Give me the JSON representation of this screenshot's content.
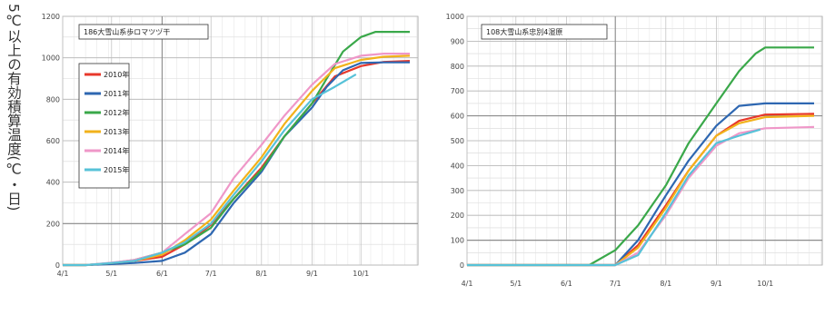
{
  "y_axis_title": "5℃以上の有効積算温度(℃・日)",
  "chart_data": [
    {
      "type": "line",
      "title": "186大雪山系歩ロマツヅ干",
      "xlabel": "",
      "ylabel": "",
      "ylim": [
        0,
        1200
      ],
      "y_ticks": [
        0,
        200,
        400,
        600,
        800,
        1000,
        1200
      ],
      "x_ticks": [
        "4/1",
        "5/1",
        "6/1",
        "7/1",
        "8/1",
        "9/1",
        "10/1"
      ],
      "legend": "top-left",
      "series": [
        {
          "name": "2010年",
          "color": "#e8382b",
          "points": [
            [
              "4/1",
              0
            ],
            [
              "4/15",
              0
            ],
            [
              "5/1",
              8
            ],
            [
              "5/15",
              20
            ],
            [
              "6/1",
              40
            ],
            [
              "6/15",
              100
            ],
            [
              "7/1",
              195
            ],
            [
              "7/15",
              320
            ],
            [
              "8/1",
              470
            ],
            [
              "8/15",
              620
            ],
            [
              "9/1",
              780
            ],
            [
              "9/15",
              910
            ],
            [
              "10/1",
              960
            ],
            [
              "10/15",
              980
            ],
            [
              "10/31",
              985
            ]
          ]
        },
        {
          "name": "2011年",
          "color": "#2e67b1",
          "points": [
            [
              "4/1",
              0
            ],
            [
              "4/15",
              0
            ],
            [
              "5/1",
              5
            ],
            [
              "5/15",
              10
            ],
            [
              "6/1",
              20
            ],
            [
              "6/15",
              60
            ],
            [
              "7/1",
              150
            ],
            [
              "7/15",
              300
            ],
            [
              "8/1",
              450
            ],
            [
              "8/15",
              620
            ],
            [
              "9/1",
              760
            ],
            [
              "9/10",
              860
            ],
            [
              "9/20",
              940
            ],
            [
              "10/1",
              975
            ],
            [
              "10/15",
              978
            ],
            [
              "10/31",
              978
            ]
          ]
        },
        {
          "name": "2012年",
          "color": "#3aa84a",
          "points": [
            [
              "4/1",
              0
            ],
            [
              "4/15",
              0
            ],
            [
              "5/1",
              10
            ],
            [
              "5/15",
              25
            ],
            [
              "6/1",
              60
            ],
            [
              "6/15",
              100
            ],
            [
              "7/1",
              180
            ],
            [
              "7/15",
              320
            ],
            [
              "8/1",
              460
            ],
            [
              "8/15",
              620
            ],
            [
              "9/1",
              780
            ],
            [
              "9/10",
              900
            ],
            [
              "9/20",
              1030
            ],
            [
              "10/1",
              1100
            ],
            [
              "10/10",
              1125
            ],
            [
              "10/31",
              1125
            ]
          ]
        },
        {
          "name": "2013年",
          "color": "#f2b21b",
          "points": [
            [
              "4/1",
              0
            ],
            [
              "4/15",
              0
            ],
            [
              "5/1",
              10
            ],
            [
              "5/15",
              20
            ],
            [
              "6/1",
              50
            ],
            [
              "6/15",
              120
            ],
            [
              "7/1",
              220
            ],
            [
              "7/15",
              360
            ],
            [
              "8/1",
              520
            ],
            [
              "8/15",
              680
            ],
            [
              "9/1",
              840
            ],
            [
              "9/15",
              950
            ],
            [
              "10/1",
              990
            ],
            [
              "10/15",
              1005
            ],
            [
              "10/31",
              1010
            ]
          ]
        },
        {
          "name": "2014年",
          "color": "#ef97c8",
          "points": [
            [
              "4/1",
              0
            ],
            [
              "4/15",
              0
            ],
            [
              "5/1",
              12
            ],
            [
              "5/15",
              25
            ],
            [
              "6/1",
              60
            ],
            [
              "6/15",
              150
            ],
            [
              "7/1",
              250
            ],
            [
              "7/15",
              420
            ],
            [
              "8/1",
              580
            ],
            [
              "8/15",
              720
            ],
            [
              "9/1",
              870
            ],
            [
              "9/15",
              970
            ],
            [
              "10/1",
              1010
            ],
            [
              "10/15",
              1020
            ],
            [
              "10/31",
              1020
            ]
          ]
        },
        {
          "name": "2015年",
          "color": "#57c2d8",
          "points": [
            [
              "4/1",
              0
            ],
            [
              "4/15",
              0
            ],
            [
              "5/1",
              10
            ],
            [
              "5/15",
              20
            ],
            [
              "6/1",
              60
            ],
            [
              "6/15",
              110
            ],
            [
              "7/1",
              200
            ],
            [
              "7/15",
              340
            ],
            [
              "8/1",
              500
            ],
            [
              "8/15",
              650
            ],
            [
              "9/1",
              800
            ],
            [
              "9/15",
              860
            ],
            [
              "9/28",
              920
            ]
          ]
        }
      ]
    },
    {
      "type": "line",
      "title": "108大雪山系忠別4湿原",
      "xlabel": "",
      "ylabel": "",
      "ylim": [
        0,
        1000
      ],
      "y_ticks": [
        0,
        100,
        200,
        300,
        400,
        500,
        600,
        700,
        800,
        900,
        1000
      ],
      "x_ticks": [
        "4/1",
        "5/1",
        "6/1",
        "7/1",
        "8/1",
        "9/1",
        "10/1"
      ],
      "series": [
        {
          "name": "2010年",
          "color": "#e8382b",
          "points": [
            [
              "4/1",
              0
            ],
            [
              "7/1",
              0
            ],
            [
              "7/15",
              80
            ],
            [
              "8/1",
              240
            ],
            [
              "8/15",
              380
            ],
            [
              "9/1",
              520
            ],
            [
              "9/15",
              580
            ],
            [
              "10/1",
              605
            ],
            [
              "10/31",
              608
            ]
          ]
        },
        {
          "name": "2011年",
          "color": "#2e67b1",
          "points": [
            [
              "4/1",
              0
            ],
            [
              "7/1",
              0
            ],
            [
              "7/15",
              100
            ],
            [
              "8/1",
              280
            ],
            [
              "8/15",
              420
            ],
            [
              "9/1",
              560
            ],
            [
              "9/15",
              640
            ],
            [
              "10/1",
              650
            ],
            [
              "10/31",
              650
            ]
          ]
        },
        {
          "name": "2012年",
          "color": "#3aa84a",
          "points": [
            [
              "4/1",
              0
            ],
            [
              "6/15",
              0
            ],
            [
              "7/1",
              60
            ],
            [
              "7/15",
              160
            ],
            [
              "8/1",
              320
            ],
            [
              "8/15",
              490
            ],
            [
              "9/1",
              650
            ],
            [
              "9/15",
              780
            ],
            [
              "9/25",
              850
            ],
            [
              "10/1",
              875
            ],
            [
              "10/31",
              875
            ]
          ]
        },
        {
          "name": "2013年",
          "color": "#f2b21b",
          "points": [
            [
              "4/1",
              0
            ],
            [
              "7/1",
              0
            ],
            [
              "7/15",
              70
            ],
            [
              "8/1",
              230
            ],
            [
              "8/15",
              380
            ],
            [
              "9/1",
              520
            ],
            [
              "9/15",
              570
            ],
            [
              "10/1",
              595
            ],
            [
              "10/31",
              600
            ]
          ]
        },
        {
          "name": "2014年",
          "color": "#ef97c8",
          "points": [
            [
              "4/1",
              0
            ],
            [
              "7/1",
              0
            ],
            [
              "7/15",
              50
            ],
            [
              "8/1",
              200
            ],
            [
              "8/15",
              350
            ],
            [
              "9/1",
              480
            ],
            [
              "9/15",
              530
            ],
            [
              "10/1",
              550
            ],
            [
              "10/31",
              555
            ]
          ]
        },
        {
          "name": "2015年",
          "color": "#57c2d8",
          "points": [
            [
              "4/1",
              0
            ],
            [
              "7/1",
              0
            ],
            [
              "7/15",
              40
            ],
            [
              "8/1",
              210
            ],
            [
              "8/15",
              360
            ],
            [
              "9/1",
              490
            ],
            [
              "9/15",
              520
            ],
            [
              "9/28",
              545
            ]
          ]
        }
      ]
    }
  ]
}
